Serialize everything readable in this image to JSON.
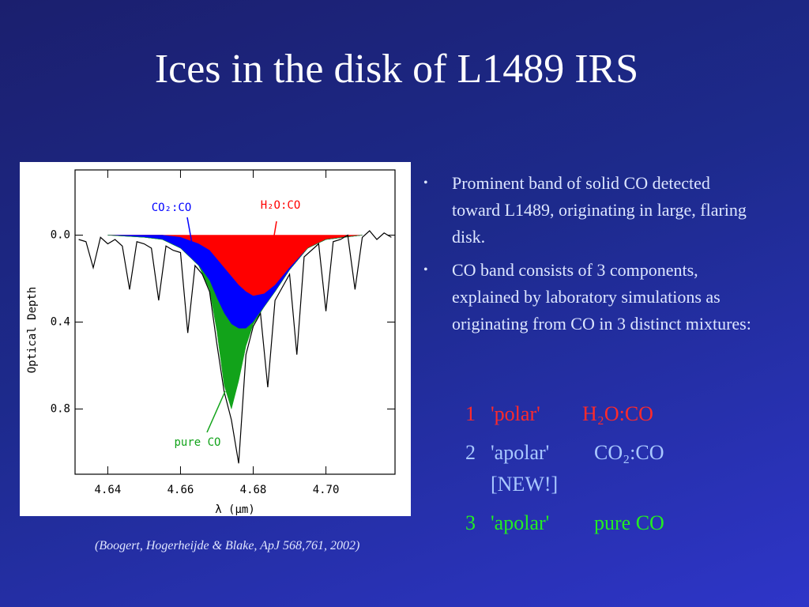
{
  "title": "Ices in the disk of L1489 IRS",
  "bullets": [
    "Prominent band of solid CO detected toward L1489, originating in large, flaring disk.",
    "CO band consists of  3 components, explained by laboratory simulations as originating from CO in 3 distinct mixtures:"
  ],
  "mixtures": [
    {
      "number": 1,
      "kind": "'polar'",
      "mixture": "H₂O:CO",
      "color": "#ff2a2a"
    },
    {
      "number": 2,
      "kind": "'apolar'",
      "mixture": "CO₂:CO",
      "note": "[NEW!]",
      "color": "#a9c8ff"
    },
    {
      "number": 3,
      "kind": "'apolar'",
      "mixture": "pure CO",
      "color": "#22ee22"
    }
  ],
  "citation": "(Boogert, Hogerheijde & Blake,  ApJ 568,761, 2002)",
  "chart_data": {
    "type": "stacked-area",
    "x_label": "λ (μm)",
    "y_label": "Optical Depth",
    "xlim": [
      4.631,
      4.719
    ],
    "ylim": [
      1.1,
      -0.3
    ],
    "xticks": [
      4.64,
      4.66,
      4.68,
      {
        "value": 4.7,
        "label": "4.70"
      }
    ],
    "yticks": [
      {
        "value": 0,
        "label": "0.0"
      },
      0.4,
      0.8
    ],
    "x": [
      4.64,
      4.65,
      4.655,
      4.66,
      4.665,
      4.668,
      4.67,
      4.672,
      4.674,
      4.676,
      4.678,
      4.68,
      4.683,
      4.686,
      4.69,
      4.695,
      4.7,
      4.71
    ],
    "series": [
      {
        "name": "H₂O:CO",
        "color": "#ff0000",
        "values": [
          0,
          0,
          0,
          0.01,
          0.04,
          0.07,
          0.11,
          0.15,
          0.19,
          0.23,
          0.26,
          0.28,
          0.27,
          0.23,
          0.15,
          0.06,
          0.02,
          0
        ]
      },
      {
        "name": "CO₂:CO",
        "color": "#0000ff",
        "values": [
          0,
          0.01,
          0.02,
          0.05,
          0.1,
          0.14,
          0.18,
          0.21,
          0.22,
          0.2,
          0.17,
          0.12,
          0.06,
          0.03,
          0.01,
          0,
          0,
          0
        ]
      },
      {
        "name": "pure CO",
        "color": "#12a31a",
        "values": [
          0,
          0,
          0,
          0,
          0,
          0.04,
          0.15,
          0.33,
          0.39,
          0.24,
          0.08,
          0.01,
          0,
          0,
          0,
          0,
          0,
          0
        ]
      }
    ],
    "spectrum": {
      "color": "#000000",
      "x": [
        4.632,
        4.634,
        4.636,
        4.638,
        4.64,
        4.642,
        4.644,
        4.646,
        4.648,
        4.65,
        4.652,
        4.654,
        4.656,
        4.658,
        4.66,
        4.662,
        4.664,
        4.666,
        4.668,
        4.67,
        4.672,
        4.674,
        4.676,
        4.678,
        4.68,
        4.682,
        4.684,
        4.686,
        4.688,
        4.69,
        4.692,
        4.694,
        4.696,
        4.698,
        4.7,
        4.702,
        4.704,
        4.706,
        4.708,
        4.71,
        4.712,
        4.714,
        4.716,
        4.718
      ],
      "values": [
        0.02,
        0.03,
        0.15,
        0.01,
        0.04,
        0.02,
        0.05,
        0.25,
        0.03,
        0.04,
        0.06,
        0.3,
        0.05,
        0.07,
        0.08,
        0.45,
        0.14,
        0.18,
        0.26,
        0.5,
        0.72,
        0.85,
        1.05,
        0.55,
        0.42,
        0.36,
        0.7,
        0.3,
        0.24,
        0.18,
        0.55,
        0.1,
        0.07,
        0.04,
        0.35,
        0.03,
        0.02,
        0,
        0.25,
        0.01,
        -0.02,
        0.02,
        -0.01,
        0.01
      ]
    }
  }
}
